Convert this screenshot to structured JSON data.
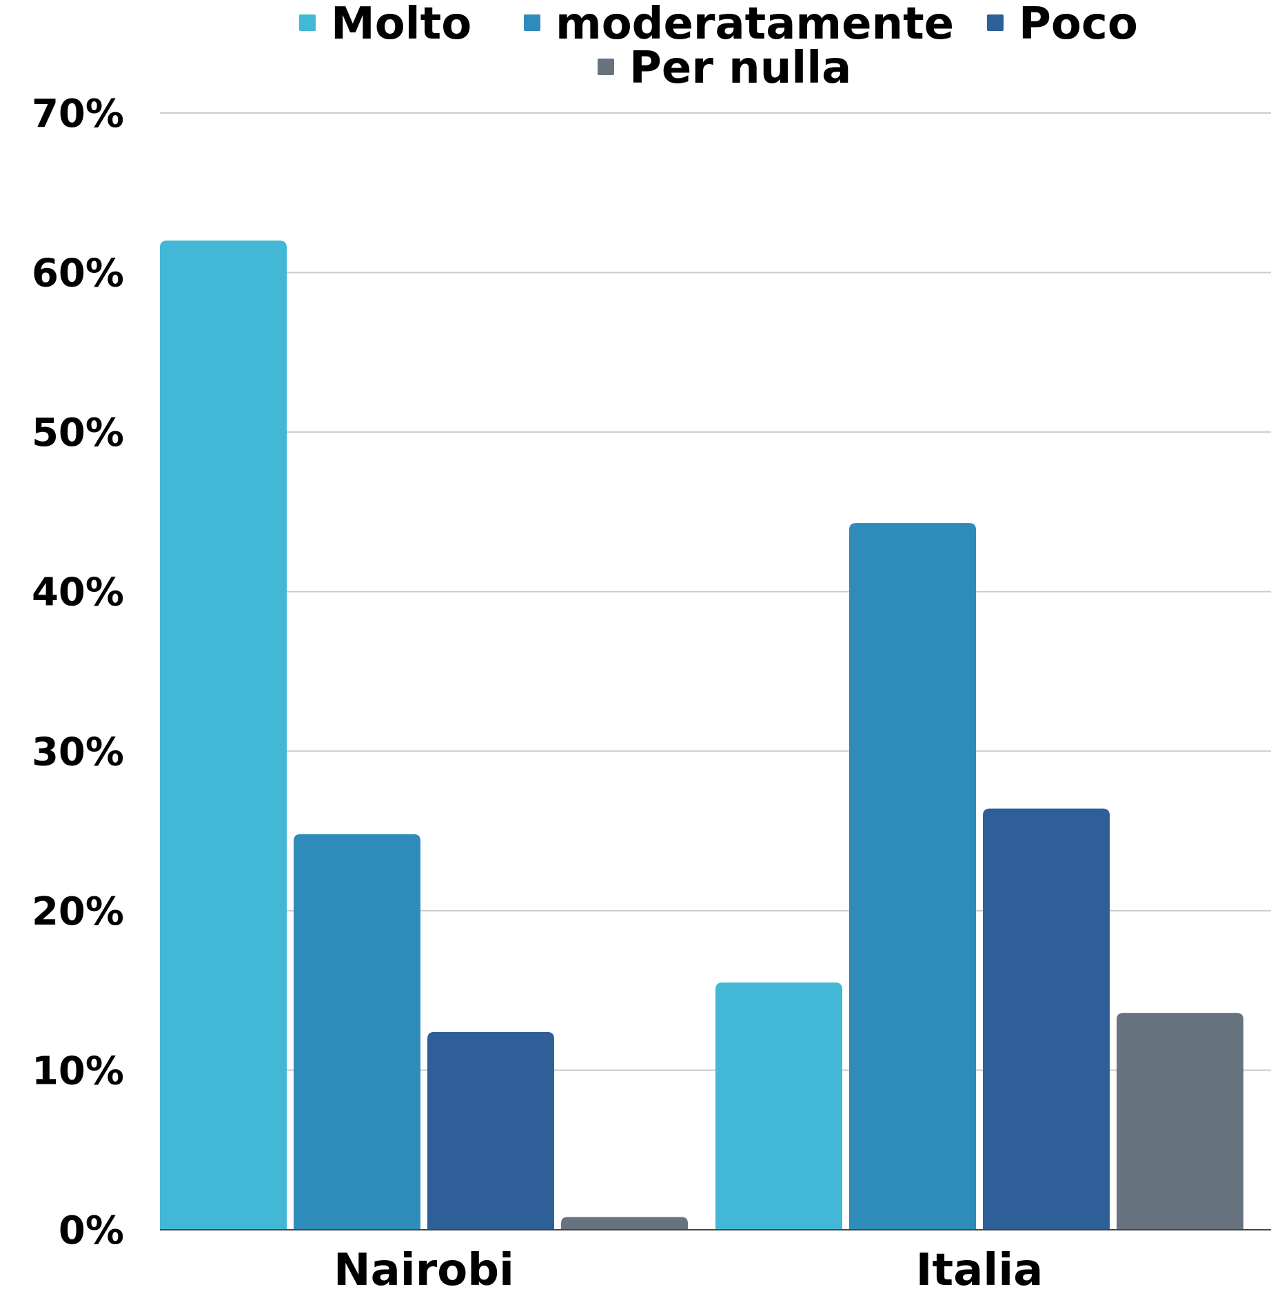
{
  "chart_data": {
    "type": "bar",
    "categories": [
      "Nairobi",
      "Italia"
    ],
    "series": [
      {
        "name": "Molto",
        "values": [
          62,
          15.5
        ],
        "color": "#42b7d6"
      },
      {
        "name": "moderatamente",
        "values": [
          24.8,
          44.3
        ],
        "color": "#2e8bba"
      },
      {
        "name": "Poco",
        "values": [
          12.4,
          26.4
        ],
        "color": "#2f5f98"
      },
      {
        "name": "Per nulla",
        "values": [
          0.8,
          13.6
        ],
        "color": "#67737f"
      }
    ],
    "yticks": [
      "0%",
      "10%",
      "20%",
      "30%",
      "40%",
      "50%",
      "60%",
      "70%"
    ],
    "ylim": [
      0,
      70
    ],
    "grid": true,
    "legend_position": "top",
    "gridline_color": "#cccccc"
  }
}
